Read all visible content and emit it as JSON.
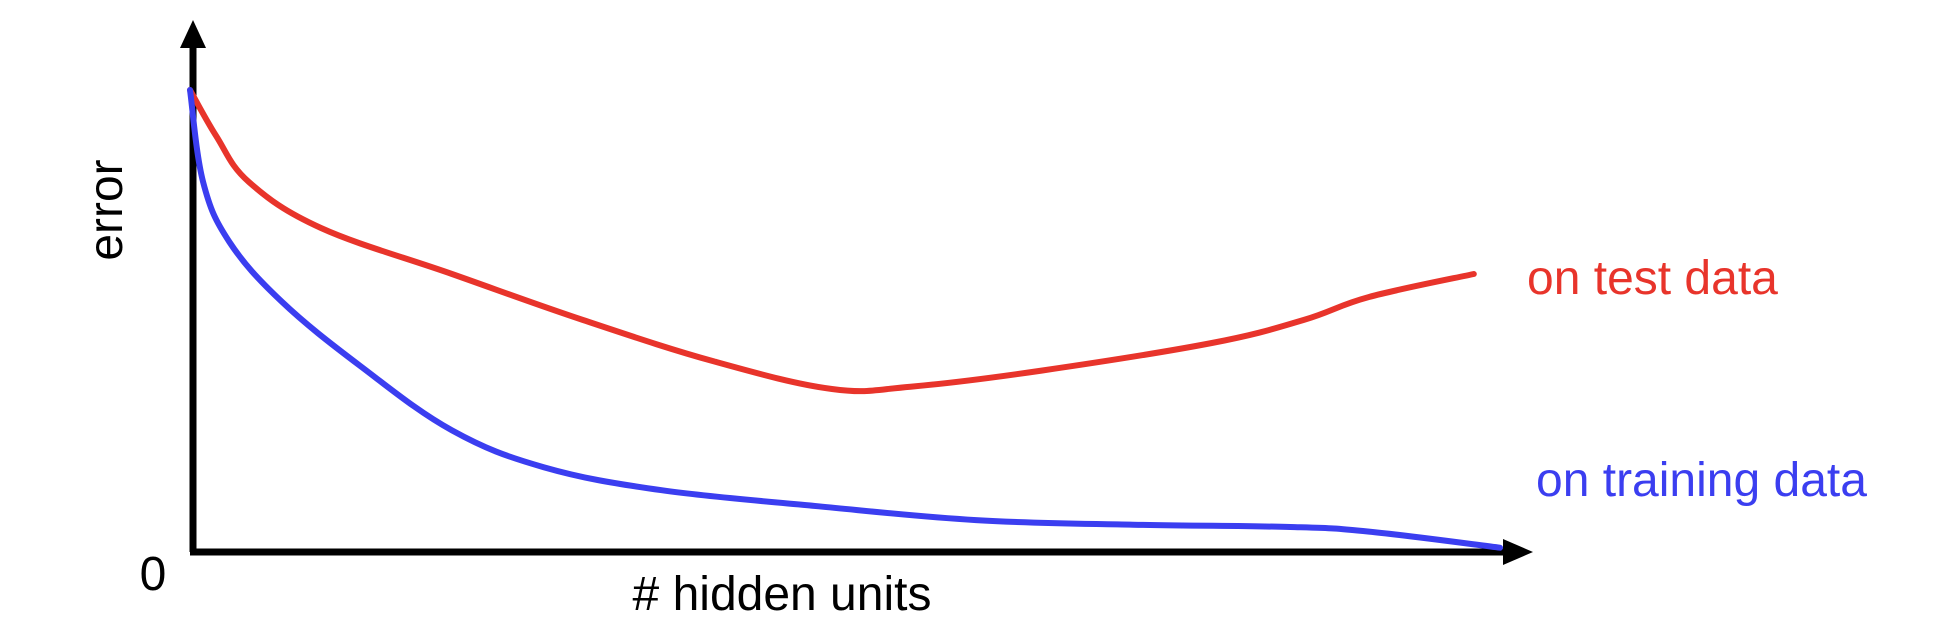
{
  "chart_data": {
    "type": "line",
    "title": "",
    "xlabel": "# hidden units",
    "ylabel": "error",
    "y_origin_label": "0",
    "xlim": [
      0,
      1
    ],
    "ylim": [
      0,
      1
    ],
    "grid": false,
    "legend": "inline-right",
    "series": [
      {
        "name": "on test data",
        "color": "#e8342b",
        "x": [
          0,
          0.02,
          0.045,
          0.1,
          0.2,
          0.3,
          0.4,
          0.49,
          0.55,
          0.65,
          0.78,
          0.85,
          0.9,
          0.98
        ],
        "y": [
          1.0,
          0.9,
          0.8,
          0.7,
          0.6,
          0.5,
          0.41,
          0.35,
          0.355,
          0.39,
          0.45,
          0.5,
          0.55,
          0.6
        ]
      },
      {
        "name": "on training data",
        "color": "#3b3ef0",
        "x": [
          0,
          0.01,
          0.03,
          0.07,
          0.13,
          0.2,
          0.27,
          0.36,
          0.48,
          0.6,
          0.72,
          0.84,
          0.9,
          1.0
        ],
        "y": [
          1.0,
          0.8,
          0.67,
          0.54,
          0.4,
          0.26,
          0.18,
          0.13,
          0.095,
          0.065,
          0.055,
          0.05,
          0.04,
          0.005
        ]
      }
    ]
  }
}
